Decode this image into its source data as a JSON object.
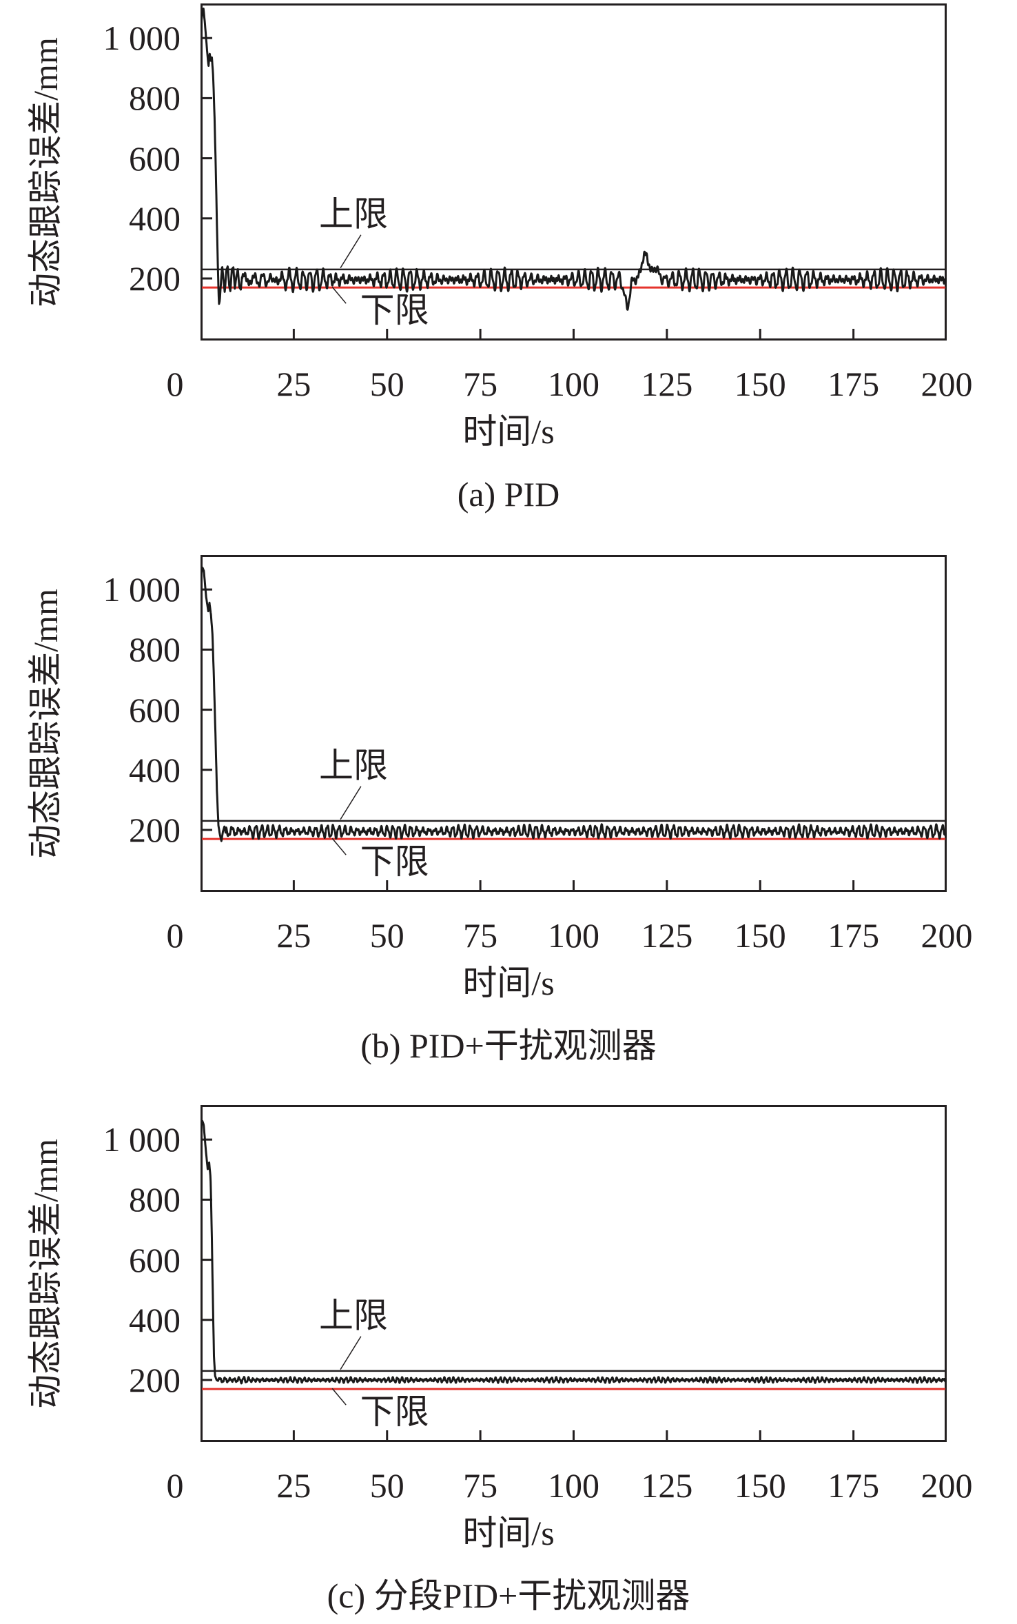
{
  "figure": {
    "background": "#ffffff",
    "text_color": "#231f20",
    "axis_color": "#231f20"
  },
  "chart_data": [
    {
      "type": "line",
      "caption": "(a) PID",
      "xlabel": "时间/s",
      "ylabel": "动态跟踪误差/mm",
      "xlim": [
        0,
        200
      ],
      "ylim": [
        -6,
        1115
      ],
      "x_ticks": [
        0,
        25,
        50,
        75,
        100,
        125,
        150,
        175,
        200
      ],
      "y_ticks": [
        200,
        400,
        600,
        800,
        1000
      ],
      "y_tick_labels": [
        "200",
        "400",
        "600",
        "800",
        "1 000"
      ],
      "grid": false,
      "legend": "none",
      "limit_lines": {
        "upper": {
          "label": "上限",
          "value": 230,
          "color": "#231f20"
        },
        "lower": {
          "label": "下限",
          "value": 170,
          "color": "#e5332c"
        }
      },
      "annotations": [
        {
          "text": "上限",
          "t": 41,
          "v": 415,
          "leader": [
            [
              43,
              345
            ],
            [
              37.5,
              235
            ]
          ]
        },
        {
          "text": "下限",
          "t": 52,
          "v": 94,
          "leader": [
            [
              39,
              117
            ],
            [
              35.3,
              172
            ]
          ]
        }
      ],
      "series": {
        "name": "动态跟踪误差",
        "color": "#1a1a1a",
        "transient_points": [
          [
            0,
            1025
          ],
          [
            0.45,
            1080
          ],
          [
            0.8,
            1098
          ],
          [
            1.2,
            1046
          ],
          [
            1.8,
            952
          ],
          [
            2.15,
            906
          ],
          [
            2.45,
            950
          ],
          [
            2.75,
            922
          ],
          [
            3.05,
            936
          ],
          [
            3.4,
            872
          ],
          [
            3.75,
            740
          ],
          [
            4.1,
            560
          ],
          [
            4.45,
            350
          ],
          [
            4.75,
            190
          ],
          [
            4.95,
            115
          ],
          [
            5.15,
            125
          ],
          [
            5.5,
            190
          ],
          [
            5.8,
            243
          ],
          [
            6.15,
            196
          ],
          [
            6.5,
            153
          ],
          [
            6.9,
            226
          ],
          [
            7.3,
            241
          ],
          [
            7.7,
            174
          ],
          [
            8.0,
            158
          ],
          [
            8.4,
            231
          ],
          [
            8.8,
            237
          ],
          [
            9.2,
            166
          ],
          [
            9.6,
            207
          ],
          [
            10.0,
            231
          ],
          [
            10.4,
            172
          ],
          [
            10.8,
            163
          ],
          [
            11.2,
            214
          ]
        ],
        "steady_state": {
          "mean": 196,
          "base_amp": 19,
          "amp_mod": 14,
          "amp_period": 26,
          "period": 1.8,
          "noise": 8,
          "settle_amp": 22,
          "settle_decay": 13
        },
        "disturbances": [
          {
            "t": 114.3,
            "delta": -92,
            "width": 0.9
          },
          {
            "t": 119.2,
            "delta": 85,
            "width": 1.3
          },
          {
            "t": 122.0,
            "delta": 38,
            "width": 1.1
          }
        ]
      }
    },
    {
      "type": "line",
      "caption": "(b) PID+干扰观测器",
      "xlabel": "时间/s",
      "ylabel": "动态跟踪误差/mm",
      "xlim": [
        0,
        200
      ],
      "ylim": [
        -6,
        1115
      ],
      "x_ticks": [
        0,
        25,
        50,
        75,
        100,
        125,
        150,
        175,
        200
      ],
      "y_ticks": [
        200,
        400,
        600,
        800,
        1000
      ],
      "y_tick_labels": [
        "200",
        "400",
        "600",
        "800",
        "1 000"
      ],
      "grid": false,
      "legend": "none",
      "limit_lines": {
        "upper": {
          "label": "上限",
          "value": 230,
          "color": "#231f20"
        },
        "lower": {
          "label": "下限",
          "value": 170,
          "color": "#e5332c"
        }
      },
      "annotations": [
        {
          "text": "上限",
          "t": 41,
          "v": 415,
          "leader": [
            [
              43,
              345
            ],
            [
              37.5,
              235
            ]
          ]
        },
        {
          "text": "下限",
          "t": 52,
          "v": 94,
          "leader": [
            [
              39,
              117
            ],
            [
              35.3,
              172
            ]
          ]
        }
      ],
      "series": {
        "name": "动态跟踪误差",
        "color": "#1a1a1a",
        "transient_points": [
          [
            0,
            1030
          ],
          [
            0.5,
            1074
          ],
          [
            0.9,
            1062
          ],
          [
            1.5,
            976
          ],
          [
            2.1,
            926
          ],
          [
            2.4,
            956
          ],
          [
            2.8,
            916
          ],
          [
            3.2,
            852
          ],
          [
            3.6,
            700
          ],
          [
            4.0,
            520
          ],
          [
            4.4,
            330
          ],
          [
            4.8,
            215
          ],
          [
            5.2,
            184
          ],
          [
            5.6,
            163
          ],
          [
            6.0,
            194
          ],
          [
            6.4,
            211
          ],
          [
            6.8,
            186
          ]
        ],
        "steady_state": {
          "mean": 195,
          "base_amp": 13,
          "amp_mod": 6,
          "amp_period": 18,
          "period": 1.6,
          "noise": 5,
          "settle_amp": 8,
          "settle_decay": 9
        },
        "disturbances": []
      }
    },
    {
      "type": "line",
      "caption": "(c) 分段PID+干扰观测器",
      "xlabel": "时间/s",
      "ylabel": "动态跟踪误差/mm",
      "xlim": [
        0,
        200
      ],
      "ylim": [
        -6,
        1115
      ],
      "x_ticks": [
        0,
        25,
        50,
        75,
        100,
        125,
        150,
        175,
        200
      ],
      "y_ticks": [
        200,
        400,
        600,
        800,
        1000
      ],
      "y_tick_labels": [
        "200",
        "400",
        "600",
        "800",
        "1 000"
      ],
      "grid": false,
      "legend": "none",
      "limit_lines": {
        "upper": {
          "label": "上限",
          "value": 230,
          "color": "#231f20"
        },
        "lower": {
          "label": "下限",
          "value": 170,
          "color": "#e5332c"
        }
      },
      "annotations": [
        {
          "text": "上限",
          "t": 41,
          "v": 415,
          "leader": [
            [
              43,
              345
            ],
            [
              37.5,
              235
            ]
          ]
        },
        {
          "text": "下限",
          "t": 52,
          "v": 94,
          "leader": [
            [
              39,
              117
            ],
            [
              35.3,
              172
            ]
          ]
        }
      ],
      "series": {
        "name": "动态跟踪误差",
        "color": "#1a1a1a",
        "transient_points": [
          [
            0,
            1028
          ],
          [
            0.45,
            1063
          ],
          [
            0.85,
            1050
          ],
          [
            1.4,
            968
          ],
          [
            1.95,
            898
          ],
          [
            2.3,
            926
          ],
          [
            2.7,
            872
          ],
          [
            3.0,
            700
          ],
          [
            3.3,
            480
          ],
          [
            3.6,
            280
          ],
          [
            3.9,
            214
          ],
          [
            4.3,
            200
          ],
          [
            4.7,
            197
          ]
        ],
        "steady_state": {
          "mean": 200,
          "base_amp": 5,
          "amp_mod": 2.5,
          "amp_period": 14,
          "period": 1.25,
          "noise": 2.5,
          "settle_amp": 4,
          "settle_decay": 8
        },
        "disturbances": []
      }
    }
  ]
}
